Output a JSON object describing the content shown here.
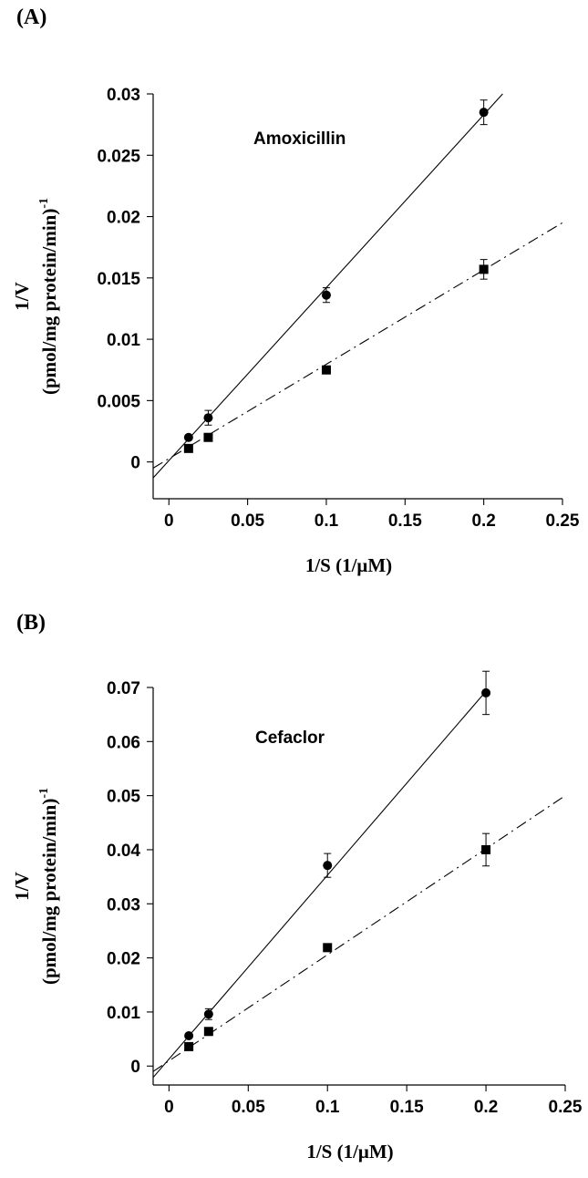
{
  "chart_data": [
    {
      "panel_label": "(A)",
      "type": "scatter",
      "annotation": "Amoxicillin",
      "xlabel": "1/S (1/μM)",
      "ylabel_line1": "1/V",
      "ylabel_line2": "(pmol/mg protein/min)",
      "ylabel_sup": "-1",
      "xlim": [
        -0.01,
        0.25
      ],
      "ylim": [
        -0.003,
        0.03
      ],
      "xticks": [
        0,
        0.05,
        0.1,
        0.15,
        0.2,
        0.25
      ],
      "xtick_labels": [
        "0",
        "0.05",
        "0.1",
        "0.15",
        "0.2",
        "0.25"
      ],
      "yticks": [
        0,
        0.005,
        0.01,
        0.015,
        0.02,
        0.025,
        0.03
      ],
      "ytick_labels": [
        "0",
        "0.005",
        "0.01",
        "0.015",
        "0.02",
        "0.025",
        "0.03"
      ],
      "grid": false,
      "series": [
        {
          "marker": "circle",
          "line_style": "solid",
          "x": [
            0.0125,
            0.025,
            0.1,
            0.2
          ],
          "y": [
            0.002,
            0.0036,
            0.0136,
            0.0285
          ],
          "yerr": [
            0.0002,
            0.0006,
            0.0006,
            0.001
          ],
          "fit": {
            "x": [
              -0.01,
              0.212
            ],
            "y": [
              -0.0013,
              0.03
            ]
          }
        },
        {
          "marker": "square",
          "line_style": "dashdot",
          "x": [
            0.0125,
            0.025,
            0.1,
            0.2
          ],
          "y": [
            0.0011,
            0.002,
            0.0075,
            0.0157
          ],
          "yerr": [
            0.0002,
            0.0002,
            0.0002,
            0.0008
          ],
          "fit": {
            "x": [
              -0.01,
              0.25
            ],
            "y": [
              -0.0005,
              0.0195
            ]
          }
        }
      ]
    },
    {
      "panel_label": "(B)",
      "type": "scatter",
      "annotation": "Cefaclor",
      "xlabel": "1/S (1/μM)",
      "ylabel_line1": "1/V",
      "ylabel_line2": "(pmol/mg protein/min)",
      "ylabel_sup": "-1",
      "xlim": [
        -0.01,
        0.25
      ],
      "ylim": [
        -0.0035,
        0.07
      ],
      "xticks": [
        0,
        0.05,
        0.1,
        0.15,
        0.2,
        0.25
      ],
      "xtick_labels": [
        "0",
        "0.05",
        "0.1",
        "0.15",
        "0.2",
        "0.25"
      ],
      "yticks": [
        0,
        0.01,
        0.02,
        0.03,
        0.04,
        0.05,
        0.06,
        0.07
      ],
      "ytick_labels": [
        "0",
        "0.01",
        "0.02",
        "0.03",
        "0.04",
        "0.05",
        "0.06",
        "0.07"
      ],
      "grid": false,
      "series": [
        {
          "marker": "circle",
          "line_style": "solid",
          "x": [
            0.0125,
            0.025,
            0.1,
            0.2
          ],
          "y": [
            0.0056,
            0.0096,
            0.0371,
            0.069
          ],
          "yerr": [
            0.0004,
            0.001,
            0.0022,
            0.004
          ],
          "fit": {
            "x": [
              -0.01,
              0.2
            ],
            "y": [
              -0.0021,
              0.0693
            ]
          }
        },
        {
          "marker": "square",
          "line_style": "dashdot",
          "x": [
            0.0125,
            0.025,
            0.1,
            0.2
          ],
          "y": [
            0.0036,
            0.0064,
            0.0219,
            0.04
          ],
          "yerr": [
            0.0002,
            0.0004,
            0.0004,
            0.003
          ],
          "fit": {
            "x": [
              -0.01,
              0.25
            ],
            "y": [
              -0.001,
              0.05
            ]
          }
        }
      ]
    }
  ]
}
